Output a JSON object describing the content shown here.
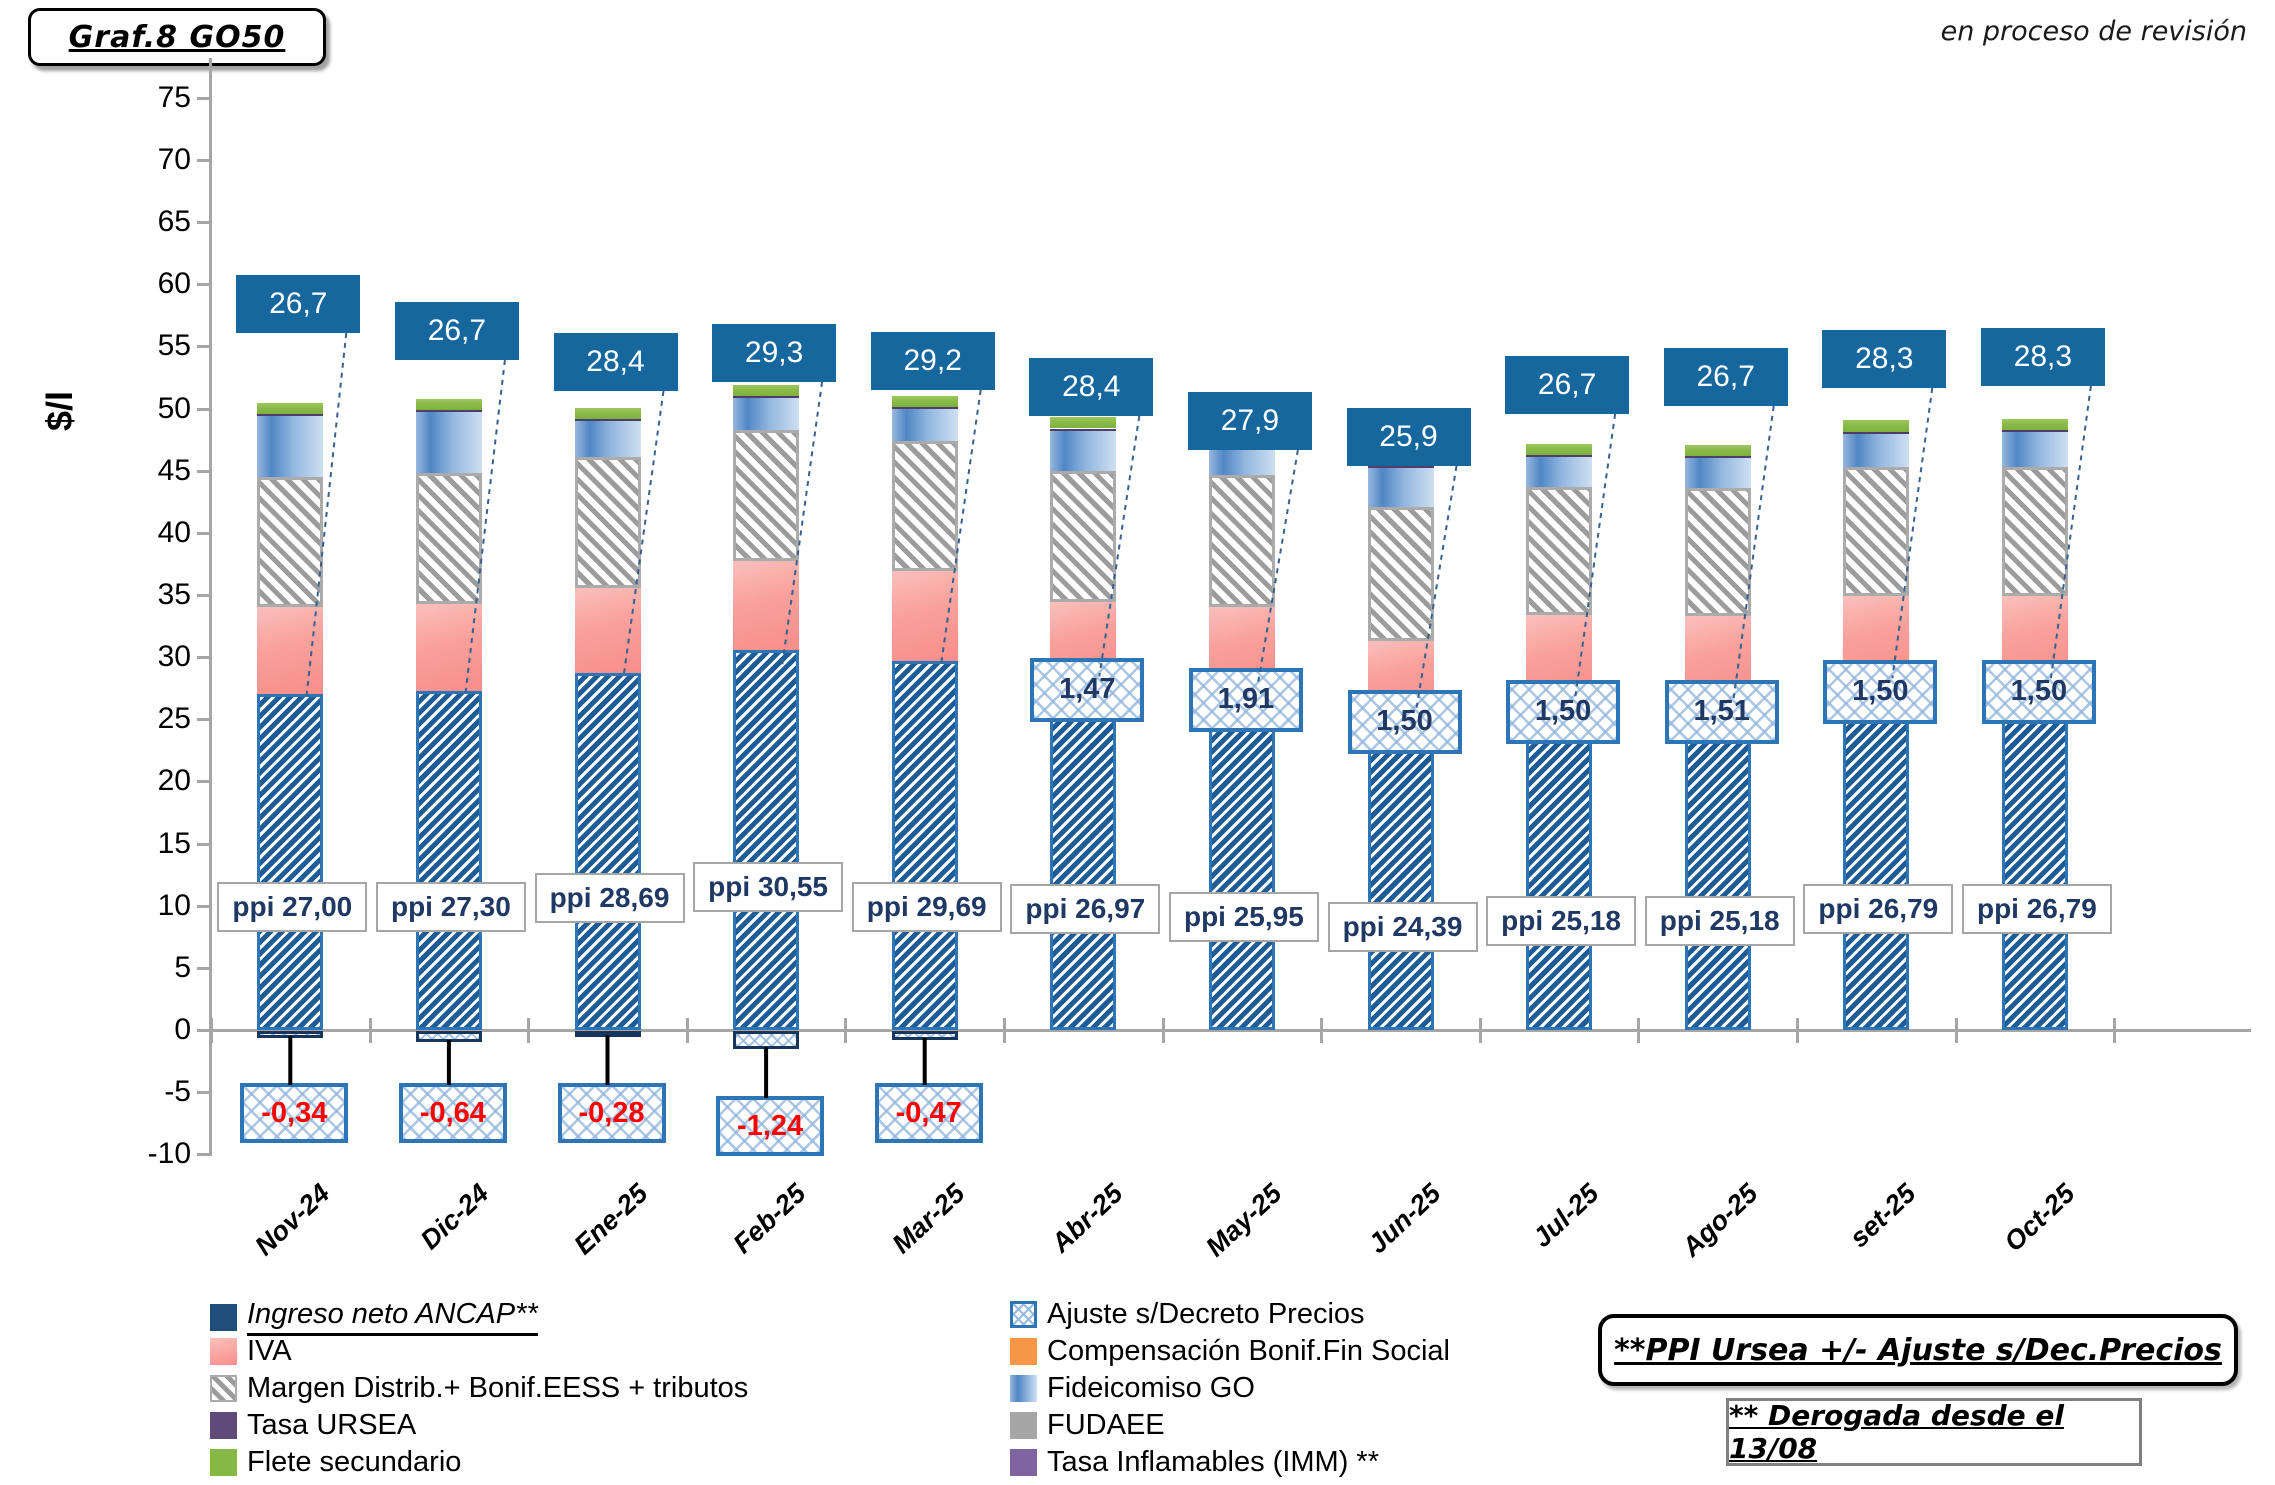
{
  "header": {
    "title": "Graf.8  GO50",
    "status_note": "en proceso de revisión"
  },
  "notes": {
    "ppi_formula": "**PPI Ursea +/- Ajuste s/Dec.Precios",
    "derogada": "** Derogada desde el 13/08"
  },
  "legend": {
    "left": [
      {
        "label": "Ingreso neto ANCAP**",
        "swatch": "ingreso-neto-navy",
        "underlined": true
      },
      {
        "label": "IVA",
        "swatch": "iva-pink"
      },
      {
        "label": "Margen Distrib.+ Bonif.EESS + tributos",
        "swatch": "margen-gray-hatch"
      },
      {
        "label": "Tasa URSEA",
        "swatch": "ursea-purple"
      },
      {
        "label": "Flete secundario",
        "swatch": "flete-green"
      }
    ],
    "right": [
      {
        "label": "Ajuste s/Decreto Precios",
        "swatch": "ajuste-blue-crosshatch"
      },
      {
        "label": "Compensación Bonif.Fin Social",
        "swatch": "compensacion-orange"
      },
      {
        "label": "Fideicomiso GO",
        "swatch": "fideicomiso-blue-stripes"
      },
      {
        "label": "FUDAEE",
        "swatch": "fudaee-gray"
      },
      {
        "label": "Tasa Inflamables (IMM) **",
        "swatch": "inflamables-purple"
      }
    ]
  },
  "chart_data": {
    "type": "bar",
    "stacked": true,
    "ylabel": "$/l",
    "ylim": [
      -10,
      75
    ],
    "ytick_step": 5,
    "grid": false,
    "categories": [
      "Nov-24",
      "Dic-24",
      "Ene-25",
      "Feb-25",
      "Mar-25",
      "Abr-25",
      "May-25",
      "Jun-25",
      "Jul-25",
      "Ago-25",
      "set-25",
      "Oct-25"
    ],
    "ingreso_neto_ancap": [
      26.7,
      26.7,
      28.4,
      29.3,
      29.2,
      28.4,
      27.9,
      25.9,
      26.7,
      26.7,
      28.3,
      28.3
    ],
    "ingreso_neto_labels": [
      "26,7",
      "26,7",
      "28,4",
      "29,3",
      "29,2",
      "28,4",
      "27,9",
      "25,9",
      "26,7",
      "26,7",
      "28,3",
      "28,3"
    ],
    "ppi": [
      27.0,
      27.3,
      28.69,
      30.55,
      29.69,
      26.97,
      25.95,
      24.39,
      25.18,
      25.18,
      26.79,
      26.79
    ],
    "ppi_labels": [
      "ppi 27,00",
      "ppi 27,30",
      "ppi 28,69",
      "ppi 30,55",
      "ppi 29,69",
      "ppi 26,97",
      "ppi 25,95",
      "ppi 24,39",
      "ppi 25,18",
      "ppi 25,18",
      "ppi 26,79",
      "ppi 26,79"
    ],
    "ajuste_decreto": [
      -0.34,
      -0.64,
      -0.28,
      -1.24,
      -0.47,
      1.47,
      1.91,
      1.5,
      1.5,
      1.51,
      1.5,
      1.5
    ],
    "ajuste_labels": [
      "-0,34",
      "-0,64",
      "-0,28",
      "-1,24",
      "-0,47",
      "1,47",
      "1,91",
      "1,50",
      "1,50",
      "1,51",
      "1,50",
      "1,50"
    ],
    "series_estimated_from_pixels": {
      "iva": [
        7.0,
        7.0,
        6.9,
        7.2,
        7.2,
        6.0,
        6.2,
        5.4,
        6.7,
        6.6,
        6.6,
        6.6
      ],
      "margen_distrib": [
        10.5,
        10.5,
        10.5,
        10.5,
        10.5,
        10.5,
        10.6,
        10.8,
        10.3,
        10.3,
        10.4,
        10.4
      ],
      "fideicomiso_go": [
        4.9,
        4.9,
        2.9,
        2.6,
        2.6,
        3.3,
        3.1,
        3.1,
        2.4,
        2.4,
        2.7,
        2.8
      ],
      "tasa_ursea": [
        0.15,
        0.15,
        0.15,
        0.15,
        0.15,
        0.15,
        0.15,
        0.15,
        0.15,
        0.15,
        0.15,
        0.15
      ],
      "flete_secundario": [
        0.9,
        0.9,
        0.9,
        0.9,
        0.9,
        0.9,
        0.9,
        0.9,
        0.9,
        0.9,
        0.9,
        0.9
      ]
    },
    "legend_position": "bottom",
    "colors": {
      "callout_blue": "#15679e",
      "ingreso_hatch_blue": "#1d5c97",
      "ingreso_border": "#2e75b6",
      "iva_pink": "#f88e8a",
      "margen_gray": "#9c9c9c",
      "fideicomiso_blue": "#4f87c5",
      "tasa_ursea_purple": "#604a7b",
      "flete_green": "#86b845",
      "compensacion_orange": "#f79646",
      "fudaee_gray": "#a6a6a6",
      "inflamables_purple": "#8064a2",
      "negative_text_red": "#ff0000",
      "ppi_text_navy": "#1f3864",
      "axis_gray": "#a6a6a6"
    }
  }
}
